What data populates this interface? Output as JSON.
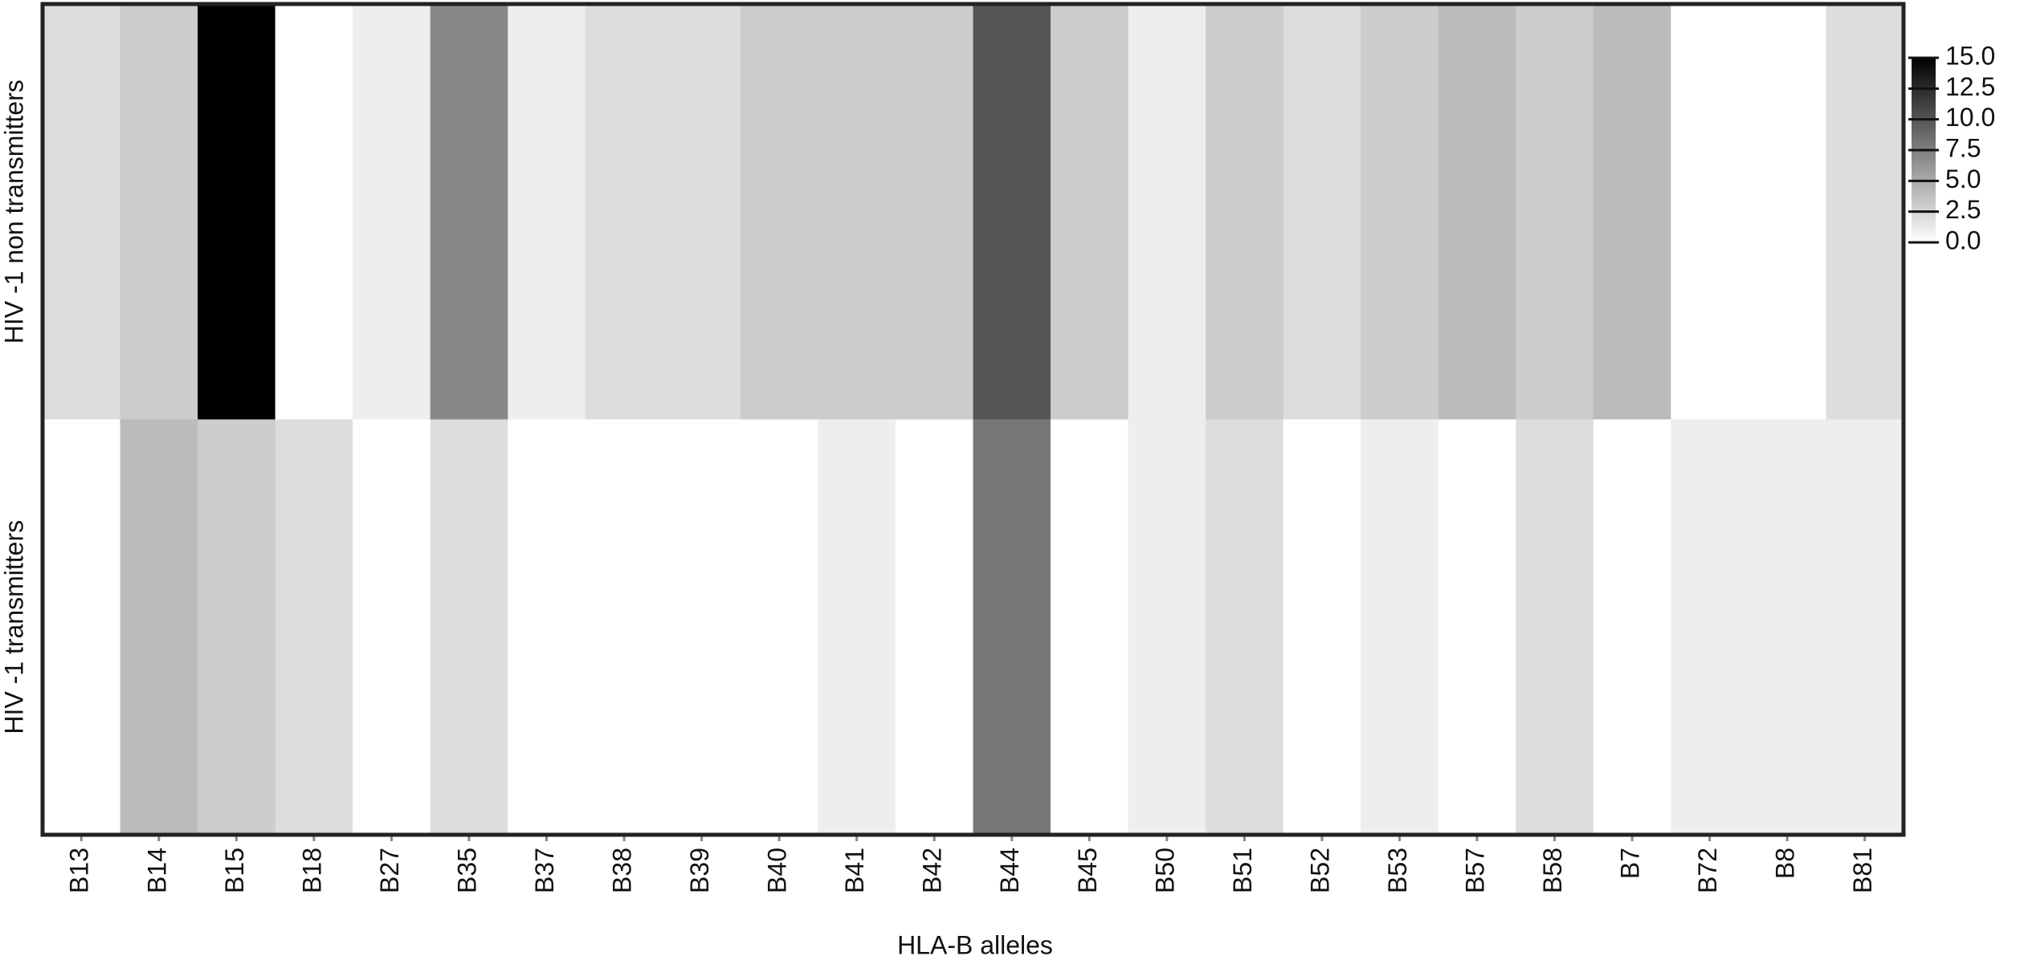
{
  "chart_data": {
    "type": "heatmap",
    "x_label": "HLA-B alleles",
    "categories": [
      "B13",
      "B14",
      "B15",
      "B18",
      "B27",
      "B35",
      "B37",
      "B38",
      "B39",
      "B40",
      "B41",
      "B42",
      "B44",
      "B45",
      "B50",
      "B51",
      "B52",
      "B53",
      "B57",
      "B58",
      "B7",
      "B72",
      "B8",
      "B81"
    ],
    "series": [
      {
        "name": "HIV -1 non transmitters",
        "values": [
          2,
          3,
          15,
          0,
          1,
          7,
          1,
          2,
          2,
          3,
          3,
          3,
          10,
          3,
          1,
          3,
          2,
          3,
          4,
          3,
          4,
          0,
          0,
          2
        ]
      },
      {
        "name": "HIV -1 transmitters",
        "values": [
          0,
          4,
          3,
          2,
          0,
          2,
          0,
          0,
          0,
          0,
          1,
          0,
          8,
          0,
          1,
          2,
          0,
          1,
          0,
          2,
          0,
          1,
          1,
          1
        ]
      }
    ],
    "colormap": [
      "#ffffff",
      "#000000"
    ],
    "clim": [
      0,
      15
    ],
    "cticks": [
      {
        "value": 0,
        "label": "0.0"
      },
      {
        "value": 2.5,
        "label": "2.5"
      },
      {
        "value": 5,
        "label": "5.0"
      },
      {
        "value": 7.5,
        "label": "7.5"
      },
      {
        "value": 10,
        "label": "10.0"
      },
      {
        "value": 12.5,
        "label": "12.5"
      },
      {
        "value": 15,
        "label": "15.0"
      }
    ]
  }
}
